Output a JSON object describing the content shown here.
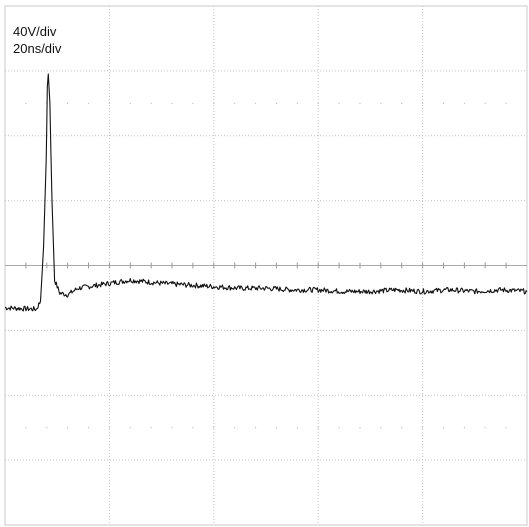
{
  "chart_data": {
    "type": "line",
    "title": "",
    "annotations": [
      "40V/div",
      "20ns/div"
    ],
    "xlabel": "",
    "ylabel": "",
    "grid": true,
    "divisions": {
      "x": 5,
      "y": 8
    },
    "xlim": [
      0,
      100
    ],
    "ylim": [
      -160,
      160
    ],
    "x_unit": "ns",
    "y_unit": "V",
    "series": [
      {
        "x": [
          0,
          6,
          6.8,
          7.4,
          7.9,
          8.1,
          8.3,
          8.6,
          9.0,
          9.5,
          10.5,
          12,
          14,
          16,
          18,
          20,
          22,
          24,
          27,
          30,
          35,
          40,
          45,
          50,
          55,
          60,
          65,
          70,
          75,
          80,
          85,
          90,
          95,
          100
        ],
        "y": [
          -26,
          -27,
          -22,
          12,
          65,
          110,
          118,
          100,
          40,
          -9,
          -17,
          -18,
          -14,
          -13,
          -12,
          -11,
          -10,
          -9,
          -10,
          -11,
          -12,
          -13,
          -14,
          -14,
          -15,
          -15,
          -16,
          -16,
          -15,
          -16,
          -15,
          -16,
          -15,
          -16
        ]
      }
    ]
  }
}
